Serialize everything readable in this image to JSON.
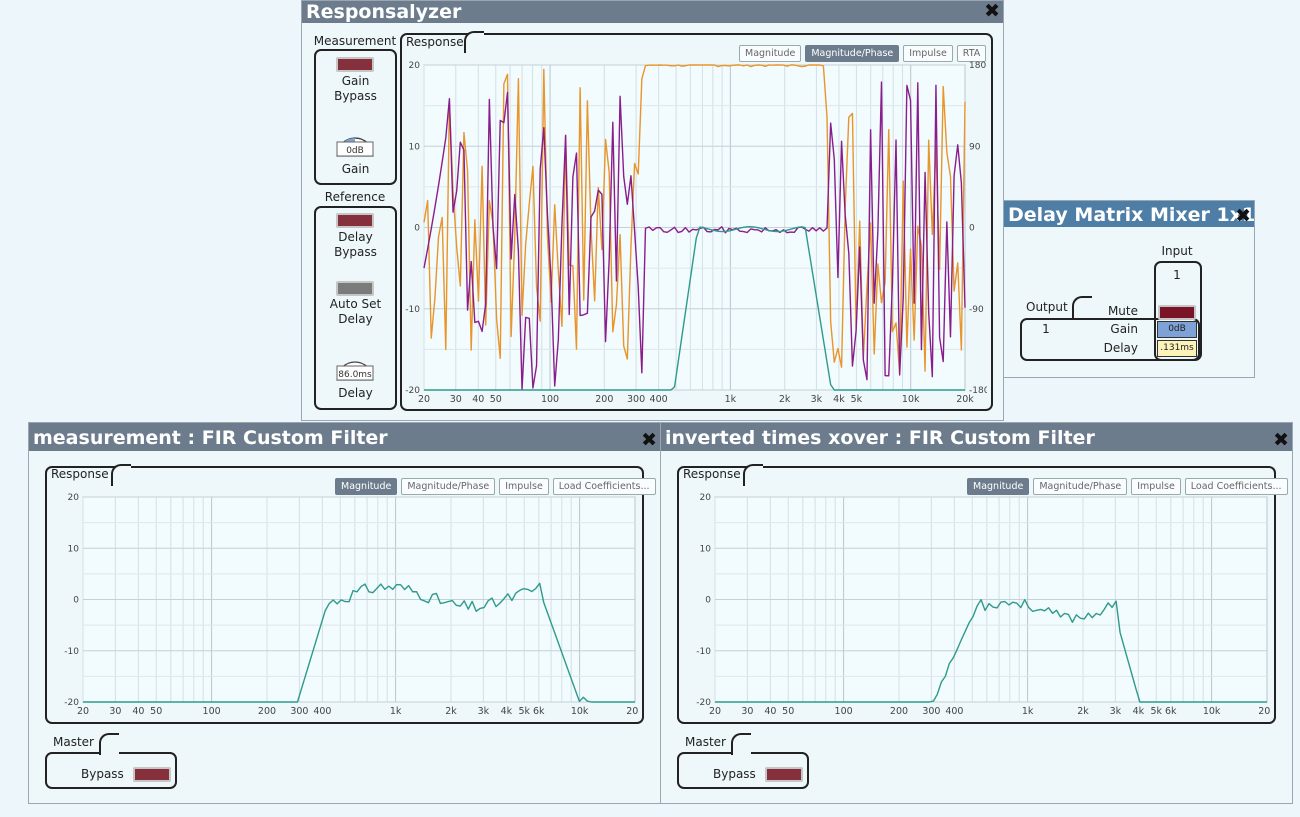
{
  "responsalyzer": {
    "title": "Responsalyzer",
    "measurement_title": "Measurement",
    "gain_bypass_label": "Gain\nBypass",
    "gain_value": "0dB",
    "gain_label": "Gain",
    "reference_title": "Reference",
    "delay_bypass_label": "Delay\nBypass",
    "auto_set_label": "Auto Set\nDelay",
    "delay_value": "86.0ms",
    "delay_label": "Delay",
    "response_title": "Response",
    "tabs": [
      "Magnitude",
      "Magnitude/Phase",
      "Impulse",
      "RTA"
    ],
    "active_tab": "Magnitude/Phase",
    "y_ticks": [
      "20",
      "10",
      "0",
      "-10",
      "-20"
    ],
    "y2_ticks": [
      "180",
      "90",
      "0",
      "-90",
      "-180"
    ],
    "x_ticks": [
      "20",
      "30",
      "40",
      "50",
      "100",
      "200",
      "300",
      "400",
      "1k",
      "2k",
      "3k",
      "4k",
      "5k",
      "10k",
      "20k"
    ],
    "colors": {
      "magnitude": "#2e9a8c",
      "phase_a": "#e8952a",
      "phase_b": "#8a1d8c"
    }
  },
  "delay_matrix": {
    "title": "Delay Matrix Mixer 1x1",
    "input_label": "Input",
    "input_number": "1",
    "output_label": "Output",
    "output_number": "1",
    "mute_label": "Mute",
    "gain_label": "Gain",
    "gain_value": "0dB",
    "delay_label": "Delay",
    "delay_value": ".131ms"
  },
  "fir_left": {
    "title": "measurement : FIR Custom Filter",
    "response_title": "Response",
    "tabs": [
      "Magnitude",
      "Magnitude/Phase",
      "Impulse",
      "Load Coefficients..."
    ],
    "active_tab": "Magnitude",
    "y_ticks": [
      "20",
      "10",
      "0",
      "-10",
      "-20"
    ],
    "x_ticks": [
      "20",
      "30",
      "40",
      "50",
      "100",
      "200",
      "300",
      "400",
      "1k",
      "2k",
      "3k",
      "4k",
      "5k",
      "6k",
      "10k",
      "20k"
    ],
    "master_title": "Master",
    "bypass_label": "Bypass"
  },
  "fir_right": {
    "title": "inverted times xover : FIR Custom Filter",
    "response_title": "Response",
    "tabs": [
      "Magnitude",
      "Magnitude/Phase",
      "Impulse",
      "Load Coefficients..."
    ],
    "active_tab": "Magnitude",
    "y_ticks": [
      "20",
      "10",
      "0",
      "-10",
      "-20"
    ],
    "x_ticks": [
      "20",
      "30",
      "40",
      "50",
      "100",
      "200",
      "300",
      "400",
      "1k",
      "2k",
      "3k",
      "4k",
      "5k",
      "6k",
      "10k",
      "20k"
    ],
    "master_title": "Master",
    "bypass_label": "Bypass"
  }
}
